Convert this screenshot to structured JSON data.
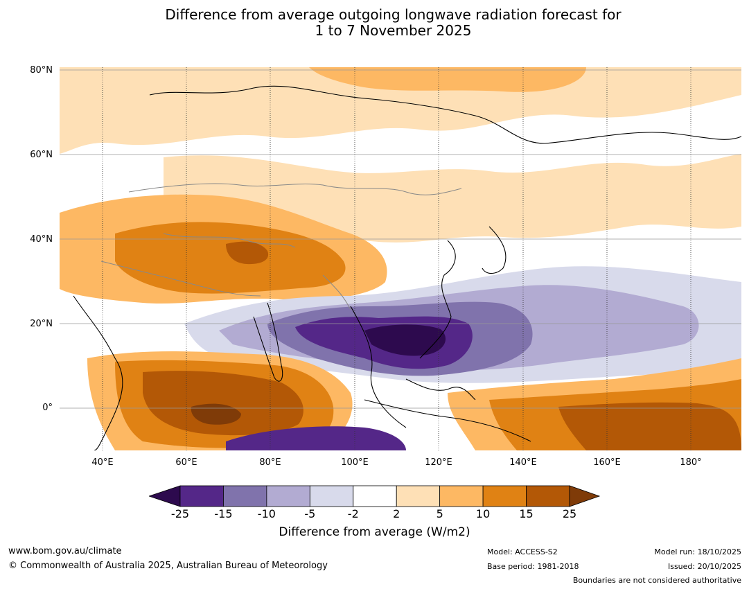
{
  "title": {
    "line1": "Difference from average outgoing longwave radiation forecast for",
    "line2": "1 to 7 November 2025"
  },
  "axes": {
    "lat_labels": [
      "80°N",
      "60°N",
      "40°N",
      "20°N",
      "0°"
    ],
    "lon_labels": [
      "40°E",
      "60°E",
      "80°E",
      "100°E",
      "120°E",
      "140°E",
      "160°E",
      "180°"
    ]
  },
  "colorbar": {
    "ticks": [
      "-25",
      "-15",
      "-10",
      "-5",
      "-2",
      "2",
      "5",
      "10",
      "15",
      "25"
    ],
    "colors": [
      "#2d0a4e",
      "#542788",
      "#8073ac",
      "#b2abd2",
      "#d8daeb",
      "#ffffff",
      "#fee0b6",
      "#fdb863",
      "#e08214",
      "#b35806",
      "#7f3b08"
    ],
    "label": "Difference from average (W/m2)"
  },
  "footer": {
    "website": "www.bom.gov.au/climate",
    "copyright": "© Commonwealth of Australia 2025, Australian Bureau of Meteorology",
    "model": "Model: ACCESS-S2",
    "base_period": "Base period: 1981-2018",
    "model_run": "Model run: 18/10/2025",
    "issued": "Issued: 20/10/2025",
    "disclaimer": "Boundaries are not considered authoritative"
  }
}
